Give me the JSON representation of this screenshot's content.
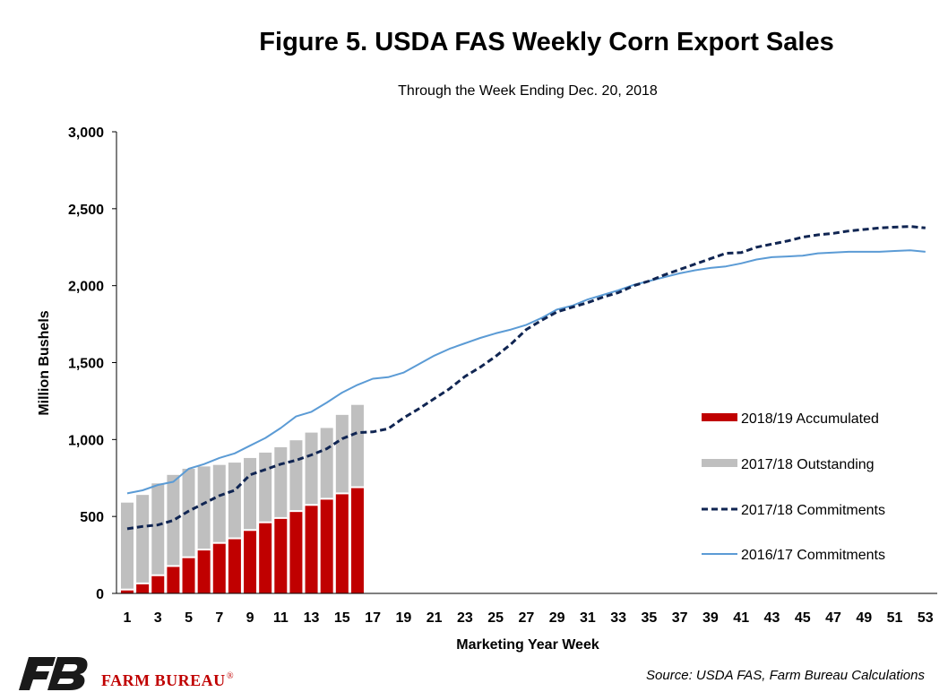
{
  "brand": {
    "name": "FARM BUREAU",
    "registered": "®",
    "color": "#c00000",
    "logo_color": "#1a1a1a"
  },
  "chart_data": {
    "type": "bar",
    "title": "Figure 5. USDA FAS Weekly Corn Export Sales",
    "subtitle": "Through the Week Ending Dec. 20, 2018",
    "xlabel": "Marketing Year Week",
    "ylabel": "Million Bushels",
    "ylim": [
      0,
      3000
    ],
    "yticks": [
      0,
      500,
      1000,
      1500,
      2000,
      2500,
      3000
    ],
    "ytick_labels": [
      "0",
      "500",
      "1,000",
      "1,500",
      "2,000",
      "2,500",
      "3,000"
    ],
    "xlim": [
      1,
      53
    ],
    "xtick_labels": [
      "1",
      "3",
      "5",
      "7",
      "9",
      "11",
      "13",
      "15",
      "17",
      "19",
      "21",
      "23",
      "25",
      "27",
      "29",
      "31",
      "33",
      "35",
      "37",
      "39",
      "41",
      "43",
      "45",
      "47",
      "49",
      "51",
      "53"
    ],
    "grid": false,
    "legend_position": "right",
    "source": "Source: USDA FAS, Farm Bureau Calculations",
    "series": [
      {
        "name": "2018/19 Accumulated",
        "kind": "bar",
        "color": "#c00000",
        "x": [
          1,
          2,
          3,
          4,
          5,
          6,
          7,
          8,
          9,
          10,
          11,
          12,
          13,
          14,
          15,
          16
        ],
        "values": [
          25,
          65,
          118,
          178,
          235,
          285,
          328,
          358,
          412,
          462,
          490,
          535,
          575,
          615,
          650,
          690
        ]
      },
      {
        "name": "2017/18 Outstanding",
        "kind": "bar",
        "color": "#bfbfbf",
        "x": [
          1,
          2,
          3,
          4,
          5,
          6,
          7,
          8,
          9,
          10,
          11,
          12,
          13,
          14,
          15,
          16
        ],
        "values": [
          590,
          640,
          715,
          770,
          810,
          825,
          835,
          850,
          880,
          915,
          950,
          995,
          1045,
          1075,
          1160,
          1225
        ]
      },
      {
        "name": "2017/18 Commitments",
        "kind": "line",
        "style": "dashed",
        "color": "#102552",
        "x": [
          1,
          2,
          3,
          4,
          5,
          6,
          7,
          8,
          9,
          10,
          11,
          12,
          13,
          14,
          15,
          16,
          17,
          18,
          19,
          20,
          21,
          22,
          23,
          24,
          25,
          26,
          27,
          28,
          29,
          30,
          31,
          32,
          33,
          34,
          35,
          36,
          37,
          38,
          39,
          40,
          41,
          42,
          43,
          44,
          45,
          46,
          47,
          48,
          49,
          50,
          51,
          52,
          53
        ],
        "values": [
          420,
          435,
          445,
          475,
          535,
          585,
          635,
          670,
          770,
          805,
          840,
          865,
          900,
          940,
          1005,
          1045,
          1050,
          1070,
          1140,
          1200,
          1265,
          1330,
          1410,
          1470,
          1540,
          1620,
          1715,
          1775,
          1830,
          1860,
          1890,
          1925,
          1955,
          2000,
          2030,
          2070,
          2105,
          2140,
          2175,
          2210,
          2215,
          2250,
          2270,
          2290,
          2315,
          2330,
          2340,
          2355,
          2365,
          2375,
          2380,
          2385,
          2375
        ]
      },
      {
        "name": "2016/17 Commitments",
        "kind": "line",
        "style": "solid",
        "color": "#5b9bd5",
        "x": [
          1,
          2,
          3,
          4,
          5,
          6,
          7,
          8,
          9,
          10,
          11,
          12,
          13,
          14,
          15,
          16,
          17,
          18,
          19,
          20,
          21,
          22,
          23,
          24,
          25,
          26,
          27,
          28,
          29,
          30,
          31,
          32,
          33,
          34,
          35,
          36,
          37,
          38,
          39,
          40,
          41,
          42,
          43,
          44,
          45,
          46,
          47,
          48,
          49,
          50,
          51,
          52,
          53
        ],
        "values": [
          650,
          670,
          705,
          725,
          810,
          840,
          880,
          910,
          960,
          1010,
          1075,
          1150,
          1180,
          1240,
          1305,
          1355,
          1395,
          1405,
          1435,
          1490,
          1545,
          1590,
          1625,
          1660,
          1690,
          1715,
          1745,
          1790,
          1845,
          1870,
          1910,
          1940,
          1970,
          2005,
          2030,
          2055,
          2080,
          2100,
          2115,
          2125,
          2145,
          2170,
          2185,
          2190,
          2195,
          2210,
          2215,
          2220,
          2220,
          2220,
          2225,
          2230,
          2220
        ]
      }
    ]
  }
}
